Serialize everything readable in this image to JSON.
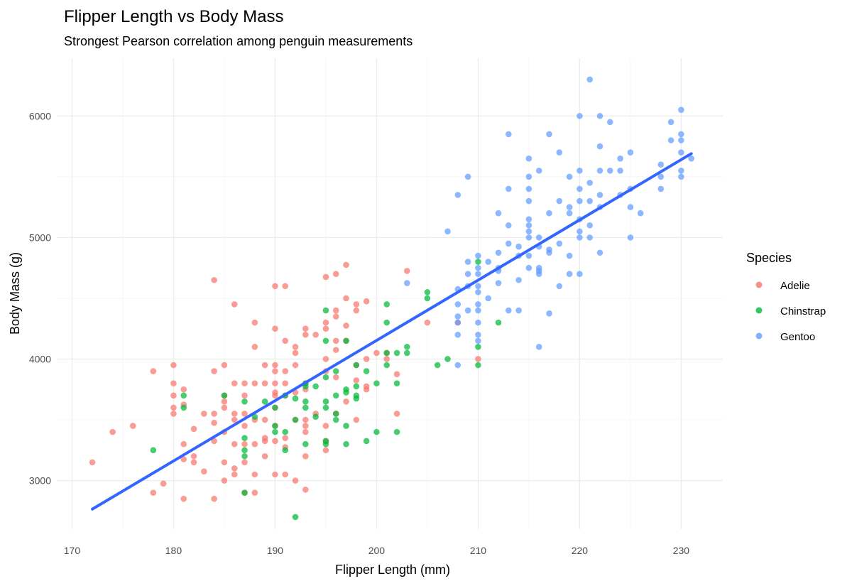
{
  "chart_data": {
    "type": "scatter",
    "title": "Flipper Length vs Body Mass",
    "subtitle": "Strongest Pearson correlation among penguin measurements",
    "xlabel": "Flipper Length (mm)",
    "ylabel": "Body Mass (g)",
    "xlim": [
      168.5,
      234.1
    ],
    "ylim": [
      2600,
      6475
    ],
    "xticks": [
      170,
      180,
      190,
      200,
      210,
      220,
      230
    ],
    "yticks": [
      3000,
      4000,
      5000,
      6000
    ],
    "grid": true,
    "legend": {
      "title": "Species",
      "position": "right"
    },
    "regression": {
      "x": [
        172,
        231
      ],
      "y": [
        2765,
        5690
      ],
      "color": "#3366FF"
    },
    "series": [
      {
        "name": "Adelie",
        "color": "#F8766D",
        "points": [
          [
            172,
            3150
          ],
          [
            174,
            3400
          ],
          [
            176,
            3450
          ],
          [
            178,
            3900
          ],
          [
            178,
            2900
          ],
          [
            179,
            2975
          ],
          [
            180,
            3950
          ],
          [
            180,
            3800
          ],
          [
            180,
            3700
          ],
          [
            180,
            3600
          ],
          [
            180,
            3550
          ],
          [
            181,
            3750
          ],
          [
            181,
            3625
          ],
          [
            181,
            3300
          ],
          [
            181,
            3175
          ],
          [
            181,
            2850
          ],
          [
            182,
            3425
          ],
          [
            182,
            3200
          ],
          [
            182,
            3150
          ],
          [
            183,
            3550
          ],
          [
            183,
            3075
          ],
          [
            184,
            4650
          ],
          [
            184,
            3900
          ],
          [
            184,
            3550
          ],
          [
            184,
            3475
          ],
          [
            184,
            3325
          ],
          [
            184,
            2850
          ],
          [
            185,
            3950
          ],
          [
            185,
            3700
          ],
          [
            185,
            3650
          ],
          [
            185,
            3600
          ],
          [
            185,
            3400
          ],
          [
            185,
            3150
          ],
          [
            185,
            3000
          ],
          [
            186,
            4450
          ],
          [
            186,
            3800
          ],
          [
            186,
            3550
          ],
          [
            186,
            3500
          ],
          [
            186,
            3300
          ],
          [
            186,
            3100
          ],
          [
            186,
            3050
          ],
          [
            187,
            3800
          ],
          [
            187,
            3700
          ],
          [
            187,
            3550
          ],
          [
            187,
            3450
          ],
          [
            187,
            3300
          ],
          [
            187,
            3150
          ],
          [
            187,
            2900
          ],
          [
            188,
            4300
          ],
          [
            188,
            4100
          ],
          [
            188,
            3800
          ],
          [
            188,
            3500
          ],
          [
            188,
            3300
          ],
          [
            188,
            3050
          ],
          [
            188,
            2900
          ],
          [
            189,
            3950
          ],
          [
            189,
            3800
          ],
          [
            189,
            3500
          ],
          [
            189,
            3350
          ],
          [
            189,
            3325
          ],
          [
            189,
            3200
          ],
          [
            190,
            4600
          ],
          [
            190,
            4250
          ],
          [
            190,
            3950
          ],
          [
            190,
            3900
          ],
          [
            190,
            3800
          ],
          [
            190,
            3725
          ],
          [
            190,
            3700
          ],
          [
            190,
            3600
          ],
          [
            190,
            3450
          ],
          [
            190,
            3325
          ],
          [
            190,
            3050
          ],
          [
            191,
            4600
          ],
          [
            191,
            4150
          ],
          [
            191,
            3900
          ],
          [
            191,
            3800
          ],
          [
            191,
            3700
          ],
          [
            191,
            3350
          ],
          [
            191,
            3275
          ],
          [
            191,
            3050
          ],
          [
            192,
            4100
          ],
          [
            192,
            4050
          ],
          [
            192,
            3950
          ],
          [
            192,
            3725
          ],
          [
            192,
            3500
          ],
          [
            192,
            3000
          ],
          [
            193,
            4250
          ],
          [
            193,
            4200
          ],
          [
            193,
            3800
          ],
          [
            193,
            3750
          ],
          [
            193,
            3500
          ],
          [
            193,
            3450
          ],
          [
            193,
            3400
          ],
          [
            193,
            3200
          ],
          [
            193,
            2925
          ],
          [
            194,
            4200
          ],
          [
            194,
            3550
          ],
          [
            195,
            4675
          ],
          [
            195,
            4300
          ],
          [
            195,
            4250
          ],
          [
            195,
            4000
          ],
          [
            195,
            3900
          ],
          [
            195,
            3450
          ],
          [
            195,
            3325
          ],
          [
            195,
            3250
          ],
          [
            196,
            4700
          ],
          [
            196,
            4400
          ],
          [
            196,
            4350
          ],
          [
            196,
            4150
          ],
          [
            196,
            4075
          ],
          [
            196,
            3850
          ],
          [
            196,
            3550
          ],
          [
            197,
            4775
          ],
          [
            197,
            4500
          ],
          [
            197,
            4275
          ],
          [
            197,
            4150
          ],
          [
            197,
            3650
          ],
          [
            198,
            4450
          ],
          [
            198,
            4400
          ],
          [
            198,
            3950
          ],
          [
            198,
            3825
          ],
          [
            198,
            3500
          ],
          [
            199,
            4475
          ],
          [
            199,
            4000
          ],
          [
            199,
            3775
          ],
          [
            199,
            3750
          ],
          [
            200,
            4050
          ],
          [
            201,
            4000
          ],
          [
            201,
            4050
          ],
          [
            202,
            3875
          ],
          [
            202,
            3550
          ],
          [
            203,
            4725
          ],
          [
            205,
            4300
          ],
          [
            208,
            4300
          ],
          [
            210,
            4000
          ]
        ]
      },
      {
        "name": "Chinstrap",
        "color": "#00BA38",
        "points": [
          [
            178,
            3250
          ],
          [
            181,
            3700
          ],
          [
            181,
            3600
          ],
          [
            185,
            3700
          ],
          [
            187,
            3650
          ],
          [
            187,
            3350
          ],
          [
            187,
            3250
          ],
          [
            187,
            3200
          ],
          [
            187,
            2900
          ],
          [
            188,
            3525
          ],
          [
            189,
            3650
          ],
          [
            190,
            3600
          ],
          [
            190,
            3450
          ],
          [
            190,
            3400
          ],
          [
            191,
            3700
          ],
          [
            191,
            3400
          ],
          [
            191,
            3250
          ],
          [
            192,
            3675
          ],
          [
            192,
            3500
          ],
          [
            192,
            2700
          ],
          [
            193,
            3800
          ],
          [
            193,
            3775
          ],
          [
            193,
            3650
          ],
          [
            193,
            3600
          ],
          [
            193,
            3300
          ],
          [
            194,
            3775
          ],
          [
            194,
            3525
          ],
          [
            195,
            4400
          ],
          [
            195,
            4150
          ],
          [
            195,
            3850
          ],
          [
            195,
            3650
          ],
          [
            195,
            3600
          ],
          [
            195,
            3325
          ],
          [
            195,
            3300
          ],
          [
            196,
            3900
          ],
          [
            196,
            3700
          ],
          [
            196,
            3550
          ],
          [
            196,
            3500
          ],
          [
            197,
            4150
          ],
          [
            197,
            3750
          ],
          [
            197,
            3725
          ],
          [
            197,
            3450
          ],
          [
            197,
            3300
          ],
          [
            198,
            3950
          ],
          [
            198,
            3775
          ],
          [
            198,
            3700
          ],
          [
            198,
            3675
          ],
          [
            199,
            3900
          ],
          [
            199,
            3325
          ],
          [
            200,
            3800
          ],
          [
            200,
            3400
          ],
          [
            201,
            4450
          ],
          [
            201,
            4300
          ],
          [
            201,
            4050
          ],
          [
            201,
            3950
          ],
          [
            202,
            4050
          ],
          [
            202,
            3800
          ],
          [
            202,
            3400
          ],
          [
            203,
            4100
          ],
          [
            203,
            4050
          ],
          [
            205,
            4550
          ],
          [
            205,
            4500
          ],
          [
            206,
            3950
          ],
          [
            207,
            4000
          ],
          [
            210,
            4800
          ],
          [
            210,
            4100
          ],
          [
            210,
            3950
          ],
          [
            212,
            4300
          ]
        ]
      },
      {
        "name": "Gentoo",
        "color": "#619CFF",
        "points": [
          [
            203,
            4625
          ],
          [
            207,
            5050
          ],
          [
            208,
            5350
          ],
          [
            208,
            4575
          ],
          [
            208,
            4450
          ],
          [
            208,
            4350
          ],
          [
            208,
            4300
          ],
          [
            208,
            4200
          ],
          [
            208,
            3950
          ],
          [
            209,
            5500
          ],
          [
            209,
            4800
          ],
          [
            209,
            4700
          ],
          [
            209,
            4600
          ],
          [
            209,
            4400
          ],
          [
            210,
            4850
          ],
          [
            210,
            4750
          ],
          [
            210,
            4700
          ],
          [
            210,
            4600
          ],
          [
            210,
            4550
          ],
          [
            210,
            4450
          ],
          [
            210,
            4400
          ],
          [
            210,
            4300
          ],
          [
            210,
            4200
          ],
          [
            210,
            4150
          ],
          [
            211,
            4800
          ],
          [
            211,
            4500
          ],
          [
            212,
            5200
          ],
          [
            212,
            4875
          ],
          [
            212,
            4750
          ],
          [
            212,
            4725
          ],
          [
            212,
            4625
          ],
          [
            213,
            5850
          ],
          [
            213,
            5400
          ],
          [
            213,
            5100
          ],
          [
            213,
            4950
          ],
          [
            213,
            4400
          ],
          [
            214,
            4925
          ],
          [
            214,
            4850
          ],
          [
            214,
            4650
          ],
          [
            214,
            4400
          ],
          [
            215,
            5650
          ],
          [
            215,
            5500
          ],
          [
            215,
            5400
          ],
          [
            215,
            5300
          ],
          [
            215,
            5150
          ],
          [
            215,
            5100
          ],
          [
            215,
            5050
          ],
          [
            215,
            5000
          ],
          [
            215,
            4850
          ],
          [
            215,
            4750
          ],
          [
            216,
            5550
          ],
          [
            216,
            5000
          ],
          [
            216,
            4925
          ],
          [
            216,
            4750
          ],
          [
            216,
            4725
          ],
          [
            216,
            4700
          ],
          [
            216,
            4100
          ],
          [
            217,
            5850
          ],
          [
            217,
            5200
          ],
          [
            217,
            4900
          ],
          [
            217,
            4875
          ],
          [
            217,
            4375
          ],
          [
            218,
            5700
          ],
          [
            218,
            5300
          ],
          [
            218,
            4950
          ],
          [
            218,
            4600
          ],
          [
            219,
            5500
          ],
          [
            219,
            5250
          ],
          [
            219,
            5200
          ],
          [
            219,
            4850
          ],
          [
            219,
            4700
          ],
          [
            220,
            6000
          ],
          [
            220,
            5550
          ],
          [
            220,
            5400
          ],
          [
            220,
            5300
          ],
          [
            220,
            5150
          ],
          [
            220,
            5050
          ],
          [
            220,
            5000
          ],
          [
            220,
            4700
          ],
          [
            221,
            6300
          ],
          [
            221,
            5450
          ],
          [
            221,
            5300
          ],
          [
            221,
            5100
          ],
          [
            221,
            5000
          ],
          [
            222,
            6000
          ],
          [
            222,
            5750
          ],
          [
            222,
            5550
          ],
          [
            222,
            5350
          ],
          [
            222,
            5250
          ],
          [
            222,
            4875
          ],
          [
            223,
            5950
          ],
          [
            223,
            5550
          ],
          [
            224,
            5650
          ],
          [
            224,
            5550
          ],
          [
            224,
            5350
          ],
          [
            225,
            5700
          ],
          [
            225,
            5400
          ],
          [
            225,
            5250
          ],
          [
            225,
            5000
          ],
          [
            226,
            5200
          ],
          [
            228,
            5600
          ],
          [
            228,
            5500
          ],
          [
            228,
            5400
          ],
          [
            229,
            5950
          ],
          [
            229,
            5800
          ],
          [
            230,
            6050
          ],
          [
            230,
            5850
          ],
          [
            230,
            5800
          ],
          [
            230,
            5700
          ],
          [
            230,
            5550
          ],
          [
            230,
            5500
          ],
          [
            231,
            5650
          ]
        ]
      }
    ]
  }
}
